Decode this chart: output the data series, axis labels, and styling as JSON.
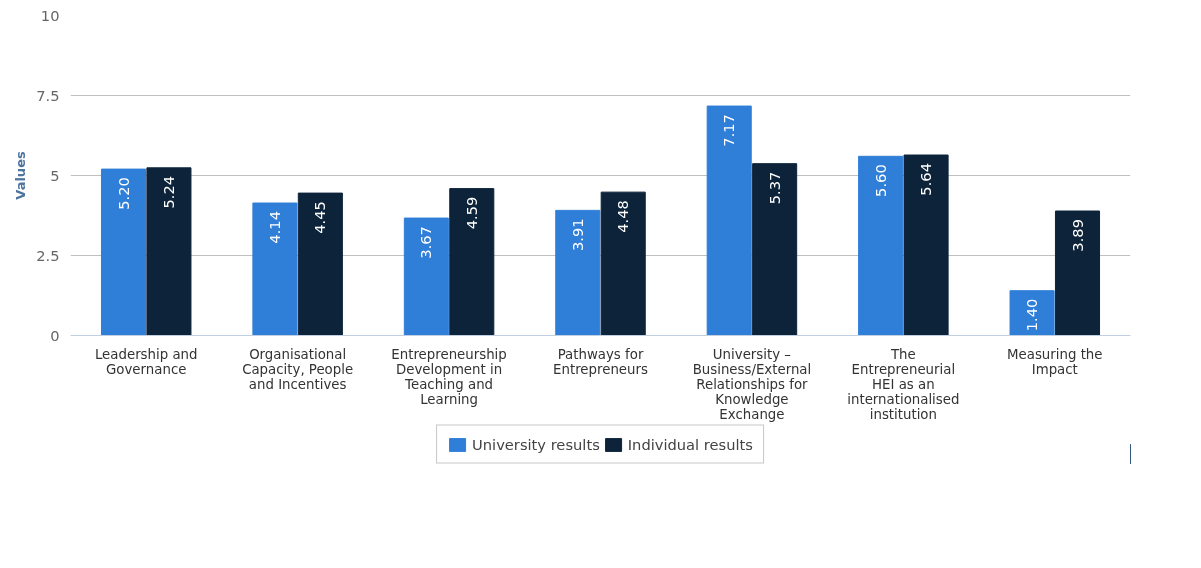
{
  "chart_data": {
    "type": "bar",
    "ylabel": "Values",
    "categories": [
      "Leadership and Governance",
      "Organisational Capacity, People and Incentives",
      "Entrepreneurship Development in Teaching and Learning",
      "Pathways for Entrepreneurs",
      "University – Business/External Relationships for Knowledge Exchange",
      "The Entrepreneurial HEI as an internationalised institution",
      "Measuring the Impact"
    ],
    "series": [
      {
        "name": "University results",
        "color": "#2f7ed8",
        "values": [
          5.2,
          4.14,
          3.67,
          3.91,
          7.17,
          5.6,
          1.4
        ],
        "value_labels": [
          "5.20",
          "4.14",
          "3.67",
          "3.91",
          "7.17",
          "5.60",
          "1.40"
        ]
      },
      {
        "name": "Individual results",
        "color": "#0d233a",
        "values": [
          5.24,
          4.45,
          4.59,
          4.48,
          5.37,
          5.64,
          3.89
        ],
        "value_labels": [
          "5.24",
          "4.45",
          "4.59",
          "4.48",
          "5.37",
          "5.64",
          "3.89"
        ]
      }
    ],
    "ylim": [
      0,
      10
    ],
    "yticks": [
      0,
      2.5,
      5,
      7.5,
      10
    ],
    "grid": "y",
    "legend": "bottom"
  }
}
